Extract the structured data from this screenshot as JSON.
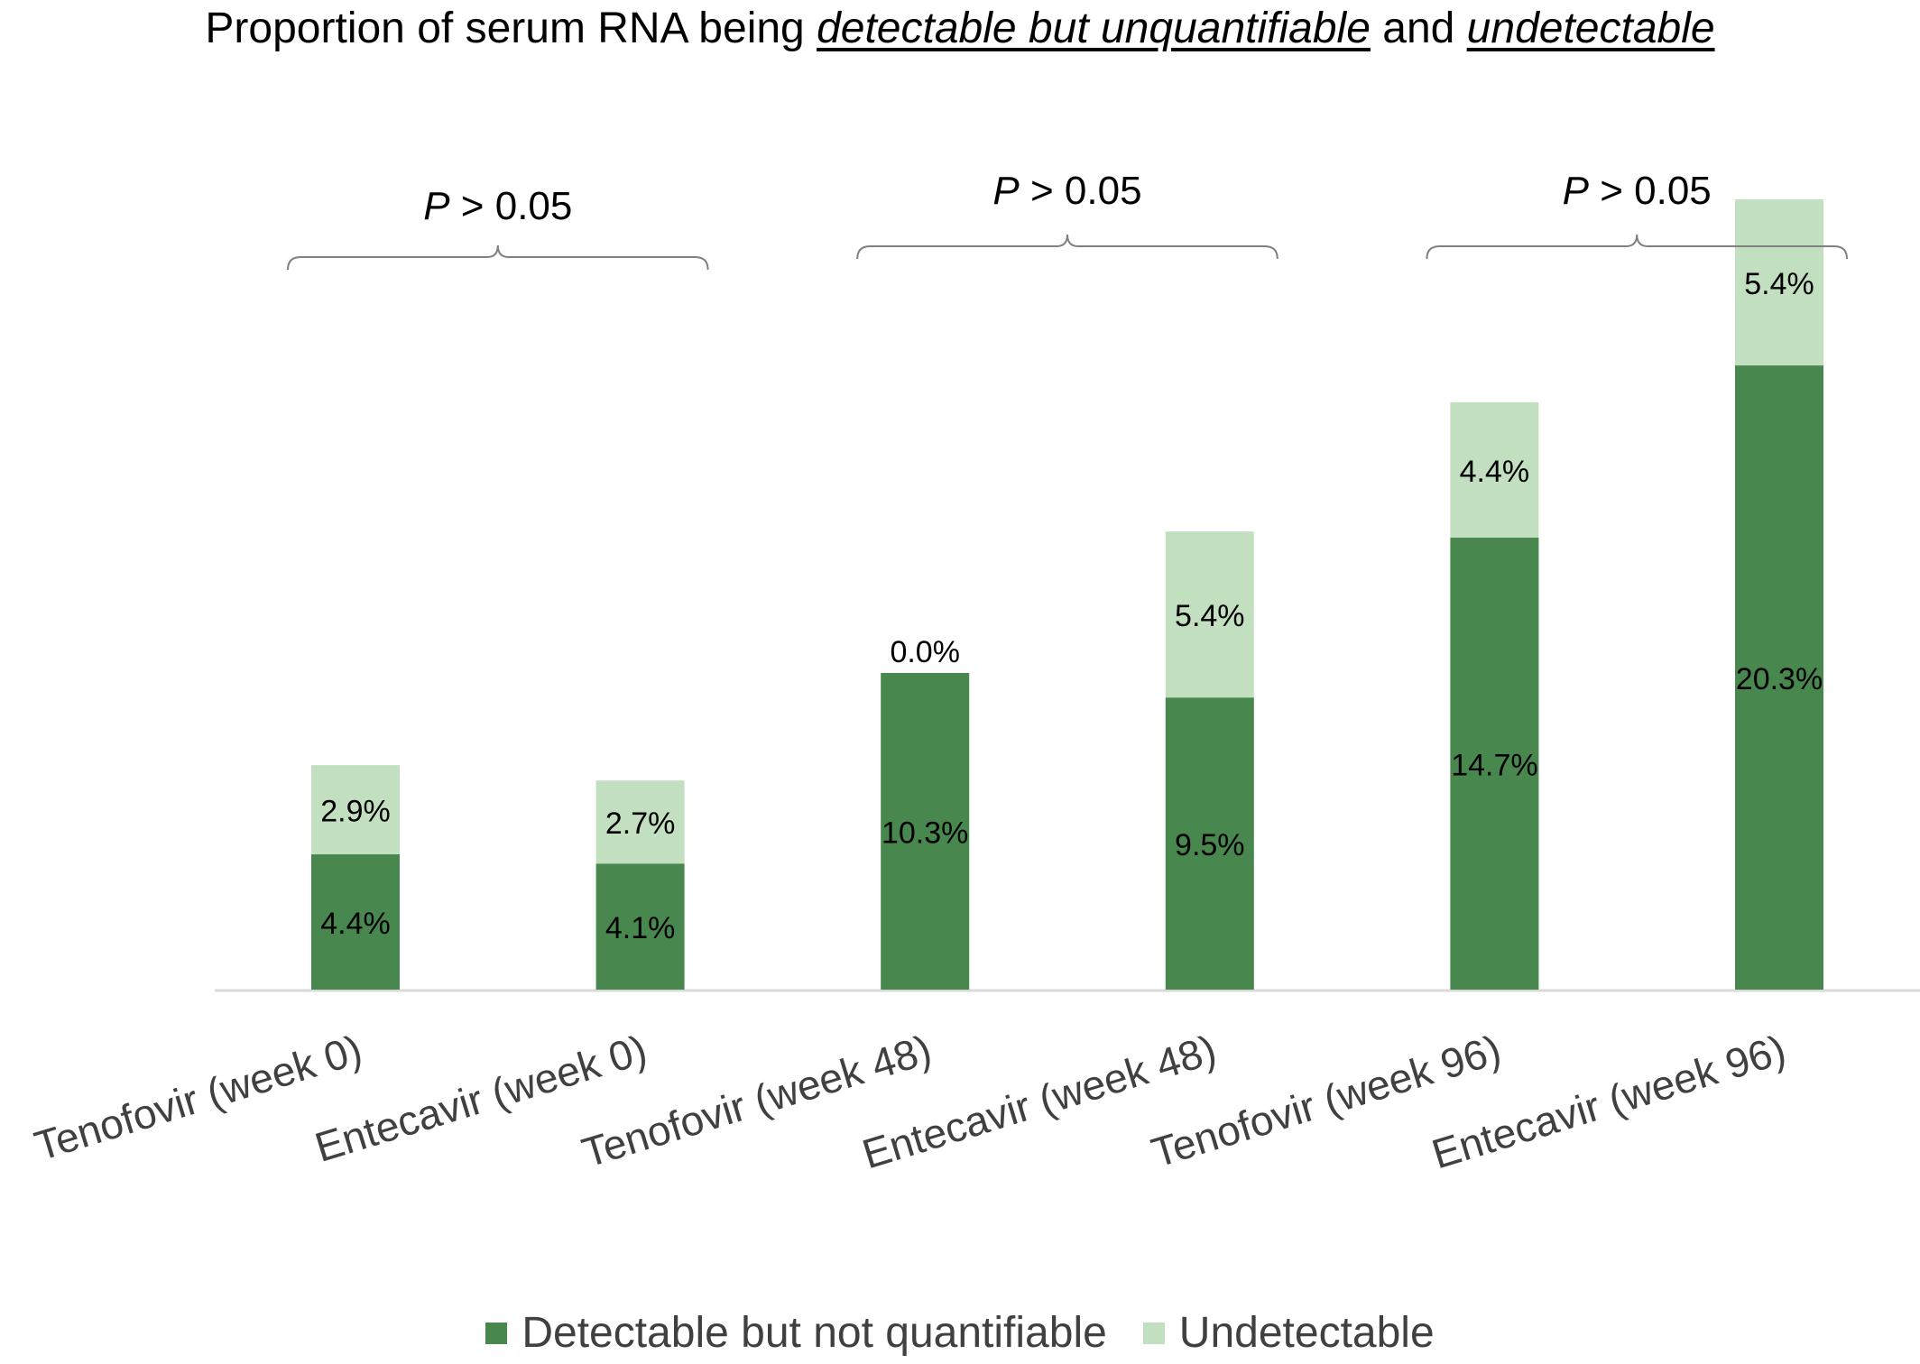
{
  "title": {
    "prefix": "Proportion of serum RNA being ",
    "emph1": "detectable but unquantifiable",
    "mid": " and ",
    "emph2": "undetectable"
  },
  "colors": {
    "dnq": "#48874d",
    "undetectable": "#c2dfbf",
    "axis": "#d9d9d9",
    "bracket": "#808080",
    "label_text": "#000000",
    "tick_text": "#404040"
  },
  "chart_data": {
    "type": "bar",
    "stacked": true,
    "categories": [
      "Tenofovir (week 0)",
      "Entecavir (week 0)",
      "Tenofovir (week 48)",
      "Entecavir (week 48)",
      "Tenofovir (week 96)",
      "Entecavir (week 96)"
    ],
    "series": [
      {
        "name": "Detectable but not quantifiable",
        "values": [
          4.4,
          4.1,
          10.3,
          9.5,
          14.7,
          20.3
        ],
        "labels": [
          "4.4%",
          "4.1%",
          "10.3%",
          "9.5%",
          "14.7%",
          "20.3%"
        ]
      },
      {
        "name": "Undetectable",
        "values": [
          2.9,
          2.7,
          0.0,
          5.4,
          4.4,
          5.4
        ],
        "labels": [
          "2.9%",
          "2.7%",
          "0.0%",
          "5.4%",
          "4.4%",
          "5.4%"
        ]
      }
    ],
    "ylim": [
      0,
      25.7
    ],
    "grid": false,
    "legend_position": "bottom",
    "annotations": [
      {
        "text": "P > 0.05",
        "italic_part": "P",
        "between": [
          0,
          1
        ]
      },
      {
        "text": "P > 0.05",
        "italic_part": "P",
        "between": [
          2,
          3
        ]
      },
      {
        "text": "P > 0.05",
        "italic_part": "P",
        "between": [
          4,
          5
        ]
      }
    ]
  }
}
